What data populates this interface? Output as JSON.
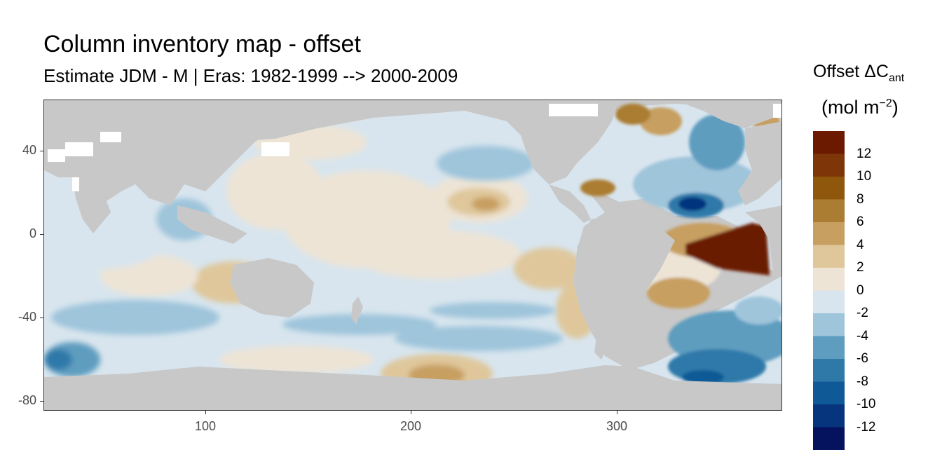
{
  "title": "Column inventory map - offset",
  "subtitle": "Estimate JDM - M | Eras: 1982-1999 --> 2000-2009",
  "legend": {
    "title_main": "Offset ΔC",
    "title_sub": "ant",
    "unit_open": "(mol m",
    "unit_sup": "−2",
    "unit_close": ")",
    "colors": [
      "#6b1a00",
      "#7e3508",
      "#8f570c",
      "#ab7d33",
      "#c79f61",
      "#dfc79b",
      "#ede4d6",
      "#d8e5ee",
      "#9fc5db",
      "#5e9dbf",
      "#2f79a9",
      "#0f5a96",
      "#06357d",
      "#05125e"
    ],
    "labels": [
      "12",
      "10",
      "8",
      "6",
      "4",
      "2",
      "0",
      "-2",
      "-4",
      "-6",
      "-8",
      "-10",
      "-12"
    ]
  },
  "axes": {
    "x_ticks": [
      "100",
      "200",
      "300"
    ],
    "y_ticks": [
      "40",
      "0",
      "-40",
      "-80"
    ],
    "xlim": [
      20,
      380
    ],
    "ylim": [
      -85,
      65
    ]
  },
  "map_colors": {
    "land": "#c8c8c8",
    "nodata": "#ffffff",
    "neutral": "#d8e5ee"
  }
}
